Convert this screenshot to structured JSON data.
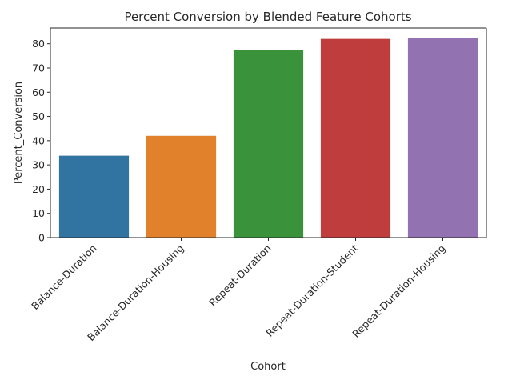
{
  "chart_data": {
    "type": "bar",
    "title": "Percent Conversion by Blended Feature Cohorts",
    "xlabel": "Cohort",
    "ylabel": "Percent_Conversion",
    "ylim": [
      0,
      86.5
    ],
    "yticks": [
      0,
      10,
      20,
      30,
      40,
      50,
      60,
      70,
      80
    ],
    "categories": [
      "Balance-Duration",
      "Balance-Duration-Housing",
      "Repeat-Duration",
      "Repeat-Duration-Student",
      "Repeat-Duration-Housing"
    ],
    "values": [
      33.8,
      42.0,
      77.3,
      82.0,
      82.3
    ],
    "colors": [
      "#3274a1",
      "#e1812c",
      "#3a923a",
      "#c03d3e",
      "#9372b2"
    ],
    "grid": false,
    "legend": "none"
  }
}
